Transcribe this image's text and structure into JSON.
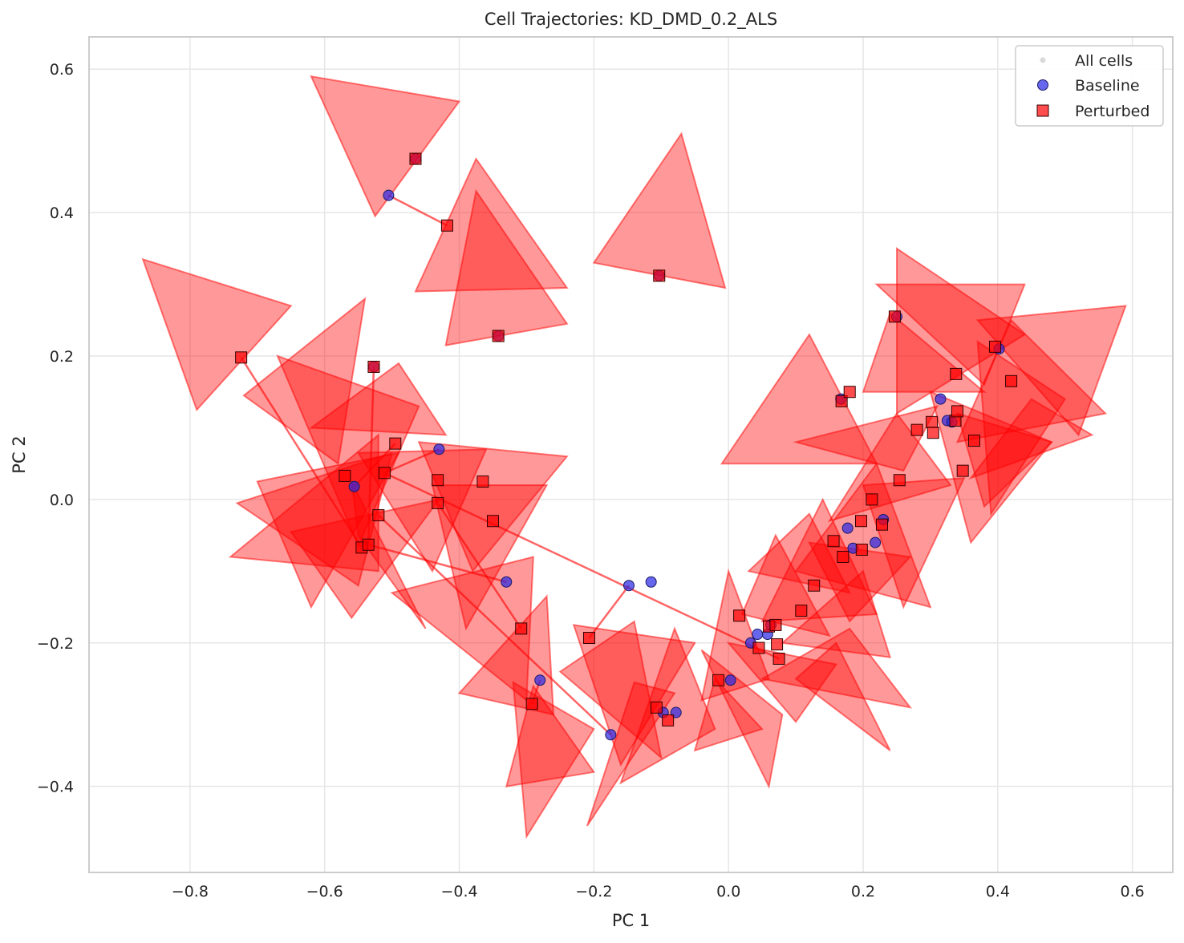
{
  "chart_data": {
    "type": "scatter",
    "title": "Cell Trajectories: KD_DMD_0.2_ALS",
    "xlabel": "PC 1",
    "ylabel": "PC 2",
    "xlim": [
      -0.95,
      0.66
    ],
    "ylim": [
      -0.52,
      0.645
    ],
    "xticks": [
      -0.8,
      -0.6,
      -0.4,
      -0.2,
      0.0,
      0.2,
      0.4,
      0.6
    ],
    "xtick_labels": [
      "−0.8",
      "−0.6",
      "−0.4",
      "−0.2",
      "0.0",
      "0.2",
      "0.4",
      "0.6"
    ],
    "yticks": [
      -0.4,
      -0.2,
      0.0,
      0.2,
      0.4,
      0.6
    ],
    "ytick_labels": [
      "−0.4",
      "−0.2",
      "0.0",
      "0.2",
      "0.4",
      "0.6"
    ],
    "grid": true,
    "legend_position": "top-right",
    "colors": {
      "all_cells": "#d9d9d9",
      "baseline": "#2727e6",
      "perturbed": "#ff0000",
      "arrow": "#ff0000",
      "axes": "#cccccc",
      "grid": "#e6e6e6"
    },
    "series": [
      {
        "name": "All cells",
        "marker": "dot",
        "points": []
      },
      {
        "name": "Baseline",
        "marker": "circle",
        "points": [
          [
            -0.505,
            0.424
          ],
          [
            -0.43,
            0.07
          ],
          [
            -0.556,
            0.018
          ],
          [
            -0.33,
            -0.115
          ],
          [
            -0.115,
            -0.115
          ],
          [
            -0.148,
            -0.12
          ],
          [
            -0.28,
            -0.252
          ],
          [
            -0.175,
            -0.328
          ],
          [
            -0.097,
            -0.297
          ],
          [
            -0.078,
            -0.297
          ],
          [
            0.003,
            -0.252
          ],
          [
            0.033,
            -0.2
          ],
          [
            0.043,
            -0.188
          ],
          [
            0.058,
            -0.188
          ],
          [
            0.063,
            -0.175
          ],
          [
            0.177,
            -0.04
          ],
          [
            0.185,
            -0.068
          ],
          [
            0.218,
            -0.06
          ],
          [
            0.23,
            -0.028
          ],
          [
            0.315,
            0.14
          ],
          [
            0.325,
            0.11
          ],
          [
            0.332,
            0.108
          ],
          [
            0.402,
            0.21
          ],
          [
            -0.465,
            0.475
          ],
          [
            -0.342,
            0.228
          ],
          [
            -0.527,
            0.185
          ],
          [
            -0.103,
            0.312
          ],
          [
            0.25,
            0.255
          ],
          [
            0.167,
            0.14
          ]
        ]
      },
      {
        "name": "Perturbed",
        "marker": "square",
        "points": [
          [
            -0.465,
            0.475
          ],
          [
            -0.418,
            0.382
          ],
          [
            -0.342,
            0.228
          ],
          [
            -0.103,
            0.312
          ],
          [
            -0.724,
            0.198
          ],
          [
            -0.527,
            0.185
          ],
          [
            -0.495,
            0.078
          ],
          [
            -0.57,
            0.033
          ],
          [
            -0.511,
            0.037
          ],
          [
            -0.432,
            0.027
          ],
          [
            -0.365,
            0.025
          ],
          [
            -0.432,
            -0.005
          ],
          [
            -0.52,
            -0.022
          ],
          [
            -0.35,
            -0.03
          ],
          [
            -0.545,
            -0.067
          ],
          [
            -0.535,
            -0.063
          ],
          [
            -0.308,
            -0.18
          ],
          [
            -0.207,
            -0.193
          ],
          [
            -0.292,
            -0.285
          ],
          [
            -0.107,
            -0.29
          ],
          [
            -0.09,
            -0.308
          ],
          [
            -0.015,
            -0.252
          ],
          [
            0.016,
            -0.162
          ],
          [
            0.045,
            -0.207
          ],
          [
            0.06,
            -0.177
          ],
          [
            0.07,
            -0.175
          ],
          [
            0.072,
            -0.202
          ],
          [
            0.075,
            -0.222
          ],
          [
            0.108,
            -0.155
          ],
          [
            0.127,
            -0.12
          ],
          [
            0.156,
            -0.058
          ],
          [
            0.17,
            -0.08
          ],
          [
            0.197,
            -0.03
          ],
          [
            0.198,
            -0.07
          ],
          [
            0.213,
            0.0
          ],
          [
            0.228,
            -0.035
          ],
          [
            0.254,
            0.027
          ],
          [
            0.247,
            0.255
          ],
          [
            0.168,
            0.137
          ],
          [
            0.18,
            0.15
          ],
          [
            0.28,
            0.097
          ],
          [
            0.302,
            0.108
          ],
          [
            0.304,
            0.093
          ],
          [
            0.337,
            0.11
          ],
          [
            0.34,
            0.123
          ],
          [
            0.338,
            0.175
          ],
          [
            0.348,
            0.04
          ],
          [
            0.365,
            0.082
          ],
          [
            0.396,
            0.213
          ],
          [
            0.42,
            0.165
          ]
        ]
      }
    ],
    "trajectories": [
      [
        [
          -0.505,
          0.424
        ],
        [
          -0.418,
          0.382
        ]
      ],
      [
        [
          -0.724,
          0.198
        ],
        [
          -0.545,
          -0.067
        ]
      ],
      [
        [
          -0.527,
          0.185
        ],
        [
          -0.535,
          -0.063
        ]
      ],
      [
        [
          -0.556,
          0.018
        ],
        [
          -0.495,
          0.078
        ]
      ],
      [
        [
          -0.43,
          0.07
        ],
        [
          -0.511,
          0.037
        ]
      ],
      [
        [
          -0.511,
          0.037
        ],
        [
          0.075,
          -0.222
        ]
      ],
      [
        [
          -0.52,
          -0.022
        ],
        [
          -0.175,
          -0.328
        ]
      ],
      [
        [
          -0.535,
          -0.063
        ],
        [
          -0.33,
          -0.115
        ]
      ],
      [
        [
          -0.148,
          -0.12
        ],
        [
          -0.207,
          -0.193
        ]
      ],
      [
        [
          -0.28,
          -0.252
        ],
        [
          -0.292,
          -0.285
        ]
      ],
      [
        [
          -0.432,
          -0.005
        ],
        [
          -0.308,
          -0.18
        ]
      ]
    ],
    "triangles": [
      [
        [
          -0.62,
          0.59
        ],
        [
          -0.4,
          0.555
        ],
        [
          -0.525,
          0.395
        ]
      ],
      [
        [
          -0.465,
          0.29
        ],
        [
          -0.24,
          0.295
        ],
        [
          -0.375,
          0.475
        ]
      ],
      [
        [
          -0.42,
          0.215
        ],
        [
          -0.24,
          0.245
        ],
        [
          -0.375,
          0.43
        ]
      ],
      [
        [
          -0.2,
          0.33
        ],
        [
          -0.005,
          0.295
        ],
        [
          -0.07,
          0.51
        ]
      ],
      [
        [
          -0.87,
          0.335
        ],
        [
          -0.65,
          0.27
        ],
        [
          -0.79,
          0.125
        ]
      ],
      [
        [
          -0.72,
          0.145
        ],
        [
          -0.54,
          0.28
        ],
        [
          -0.58,
          0.05
        ]
      ],
      [
        [
          -0.67,
          0.2
        ],
        [
          -0.55,
          -0.065
        ],
        [
          -0.46,
          0.13
        ]
      ],
      [
        [
          -0.62,
          0.1
        ],
        [
          -0.49,
          0.19
        ],
        [
          -0.42,
          0.09
        ]
      ],
      [
        [
          -0.7,
          0.025
        ],
        [
          -0.49,
          0.065
        ],
        [
          -0.62,
          -0.15
        ]
      ],
      [
        [
          -0.73,
          -0.005
        ],
        [
          -0.5,
          0.065
        ],
        [
          -0.55,
          -0.12
        ]
      ],
      [
        [
          -0.65,
          -0.045
        ],
        [
          -0.43,
          0.0
        ],
        [
          -0.56,
          -0.165
        ]
      ],
      [
        [
          -0.56,
          0.025
        ],
        [
          -0.45,
          -0.18
        ],
        [
          -0.55,
          -0.05
        ]
      ],
      [
        [
          -0.74,
          -0.08
        ],
        [
          -0.52,
          0.09
        ],
        [
          -0.52,
          -0.1
        ]
      ],
      [
        [
          -0.55,
          0.065
        ],
        [
          -0.36,
          0.07
        ],
        [
          -0.44,
          -0.1
        ]
      ],
      [
        [
          -0.46,
          0.08
        ],
        [
          -0.24,
          0.06
        ],
        [
          -0.38,
          -0.1
        ]
      ],
      [
        [
          -0.44,
          0.02
        ],
        [
          -0.27,
          0.02
        ],
        [
          -0.39,
          -0.18
        ]
      ],
      [
        [
          -0.5,
          -0.13
        ],
        [
          -0.29,
          -0.08
        ],
        [
          -0.3,
          -0.28
        ]
      ],
      [
        [
          -0.29,
          -0.26
        ],
        [
          -0.2,
          -0.38
        ],
        [
          -0.33,
          -0.4
        ]
      ],
      [
        [
          -0.27,
          -0.135
        ],
        [
          -0.26,
          -0.3
        ],
        [
          -0.4,
          -0.27
        ]
      ],
      [
        [
          -0.32,
          -0.255
        ],
        [
          -0.3,
          -0.47
        ],
        [
          -0.2,
          -0.32
        ]
      ],
      [
        [
          -0.23,
          -0.175
        ],
        [
          -0.05,
          -0.2
        ],
        [
          -0.16,
          -0.37
        ]
      ],
      [
        [
          -0.25,
          -0.24
        ],
        [
          -0.1,
          -0.36
        ],
        [
          -0.14,
          -0.17
        ]
      ],
      [
        [
          -0.14,
          -0.255
        ],
        [
          -0.08,
          -0.27
        ],
        [
          -0.21,
          -0.455
        ]
      ],
      [
        [
          -0.16,
          -0.395
        ],
        [
          -0.02,
          -0.32
        ],
        [
          -0.08,
          -0.18
        ]
      ],
      [
        [
          -0.05,
          -0.35
        ],
        [
          0.05,
          -0.32
        ],
        [
          -0.02,
          -0.25
        ]
      ],
      [
        [
          -0.04,
          -0.21
        ],
        [
          0.06,
          -0.4
        ],
        [
          0.08,
          -0.3
        ]
      ],
      [
        [
          0.0,
          -0.2
        ],
        [
          0.1,
          -0.31
        ],
        [
          0.16,
          -0.23
        ]
      ],
      [
        [
          -0.04,
          -0.28
        ],
        [
          0.06,
          -0.25
        ],
        [
          0.0,
          -0.1
        ]
      ],
      [
        [
          0.02,
          -0.16
        ],
        [
          0.15,
          -0.19
        ],
        [
          0.07,
          -0.05
        ]
      ],
      [
        [
          0.03,
          -0.1
        ],
        [
          0.18,
          -0.13
        ],
        [
          0.12,
          -0.02
        ]
      ],
      [
        [
          0.05,
          -0.17
        ],
        [
          0.22,
          -0.16
        ],
        [
          0.14,
          0.0
        ]
      ],
      [
        [
          0.08,
          -0.2
        ],
        [
          0.24,
          -0.22
        ],
        [
          0.2,
          -0.1
        ]
      ],
      [
        [
          0.1,
          -0.1
        ],
        [
          0.3,
          -0.15
        ],
        [
          0.22,
          0.05
        ]
      ],
      [
        [
          0.15,
          -0.03
        ],
        [
          0.33,
          0.02
        ],
        [
          0.25,
          0.12
        ]
      ],
      [
        [
          -0.01,
          0.05
        ],
        [
          0.22,
          0.05
        ],
        [
          0.12,
          0.23
        ]
      ],
      [
        [
          0.1,
          0.08
        ],
        [
          0.31,
          0.13
        ],
        [
          0.26,
          0.04
        ]
      ],
      [
        [
          0.2,
          0.15
        ],
        [
          0.38,
          0.15
        ],
        [
          0.24,
          0.26
        ]
      ],
      [
        [
          0.22,
          0.3
        ],
        [
          0.44,
          0.3
        ],
        [
          0.38,
          0.16
        ]
      ],
      [
        [
          0.25,
          0.35
        ],
        [
          0.44,
          0.23
        ],
        [
          0.25,
          0.12
        ]
      ],
      [
        [
          0.34,
          0.12
        ],
        [
          0.48,
          0.08
        ],
        [
          0.38,
          -0.01
        ]
      ],
      [
        [
          0.37,
          0.25
        ],
        [
          0.59,
          0.27
        ],
        [
          0.52,
          0.09
        ]
      ],
      [
        [
          0.34,
          0.08
        ],
        [
          0.56,
          0.12
        ],
        [
          0.42,
          0.25
        ]
      ],
      [
        [
          0.36,
          0.03
        ],
        [
          0.54,
          0.09
        ],
        [
          0.45,
          0.14
        ]
      ],
      [
        [
          0.39,
          -0.02
        ],
        [
          0.5,
          0.14
        ],
        [
          0.37,
          0.22
        ]
      ],
      [
        [
          0.3,
          0.15
        ],
        [
          0.48,
          0.08
        ],
        [
          0.36,
          -0.06
        ]
      ],
      [
        [
          0.26,
          -0.15
        ],
        [
          0.35,
          0.03
        ],
        [
          0.2,
          0.02
        ]
      ],
      [
        [
          0.18,
          -0.17
        ],
        [
          0.27,
          -0.08
        ],
        [
          0.12,
          -0.06
        ]
      ],
      [
        [
          0.1,
          -0.25
        ],
        [
          0.24,
          -0.35
        ],
        [
          0.16,
          -0.2
        ]
      ],
      [
        [
          0.05,
          -0.25
        ],
        [
          0.18,
          -0.18
        ],
        [
          0.27,
          -0.29
        ]
      ]
    ]
  }
}
